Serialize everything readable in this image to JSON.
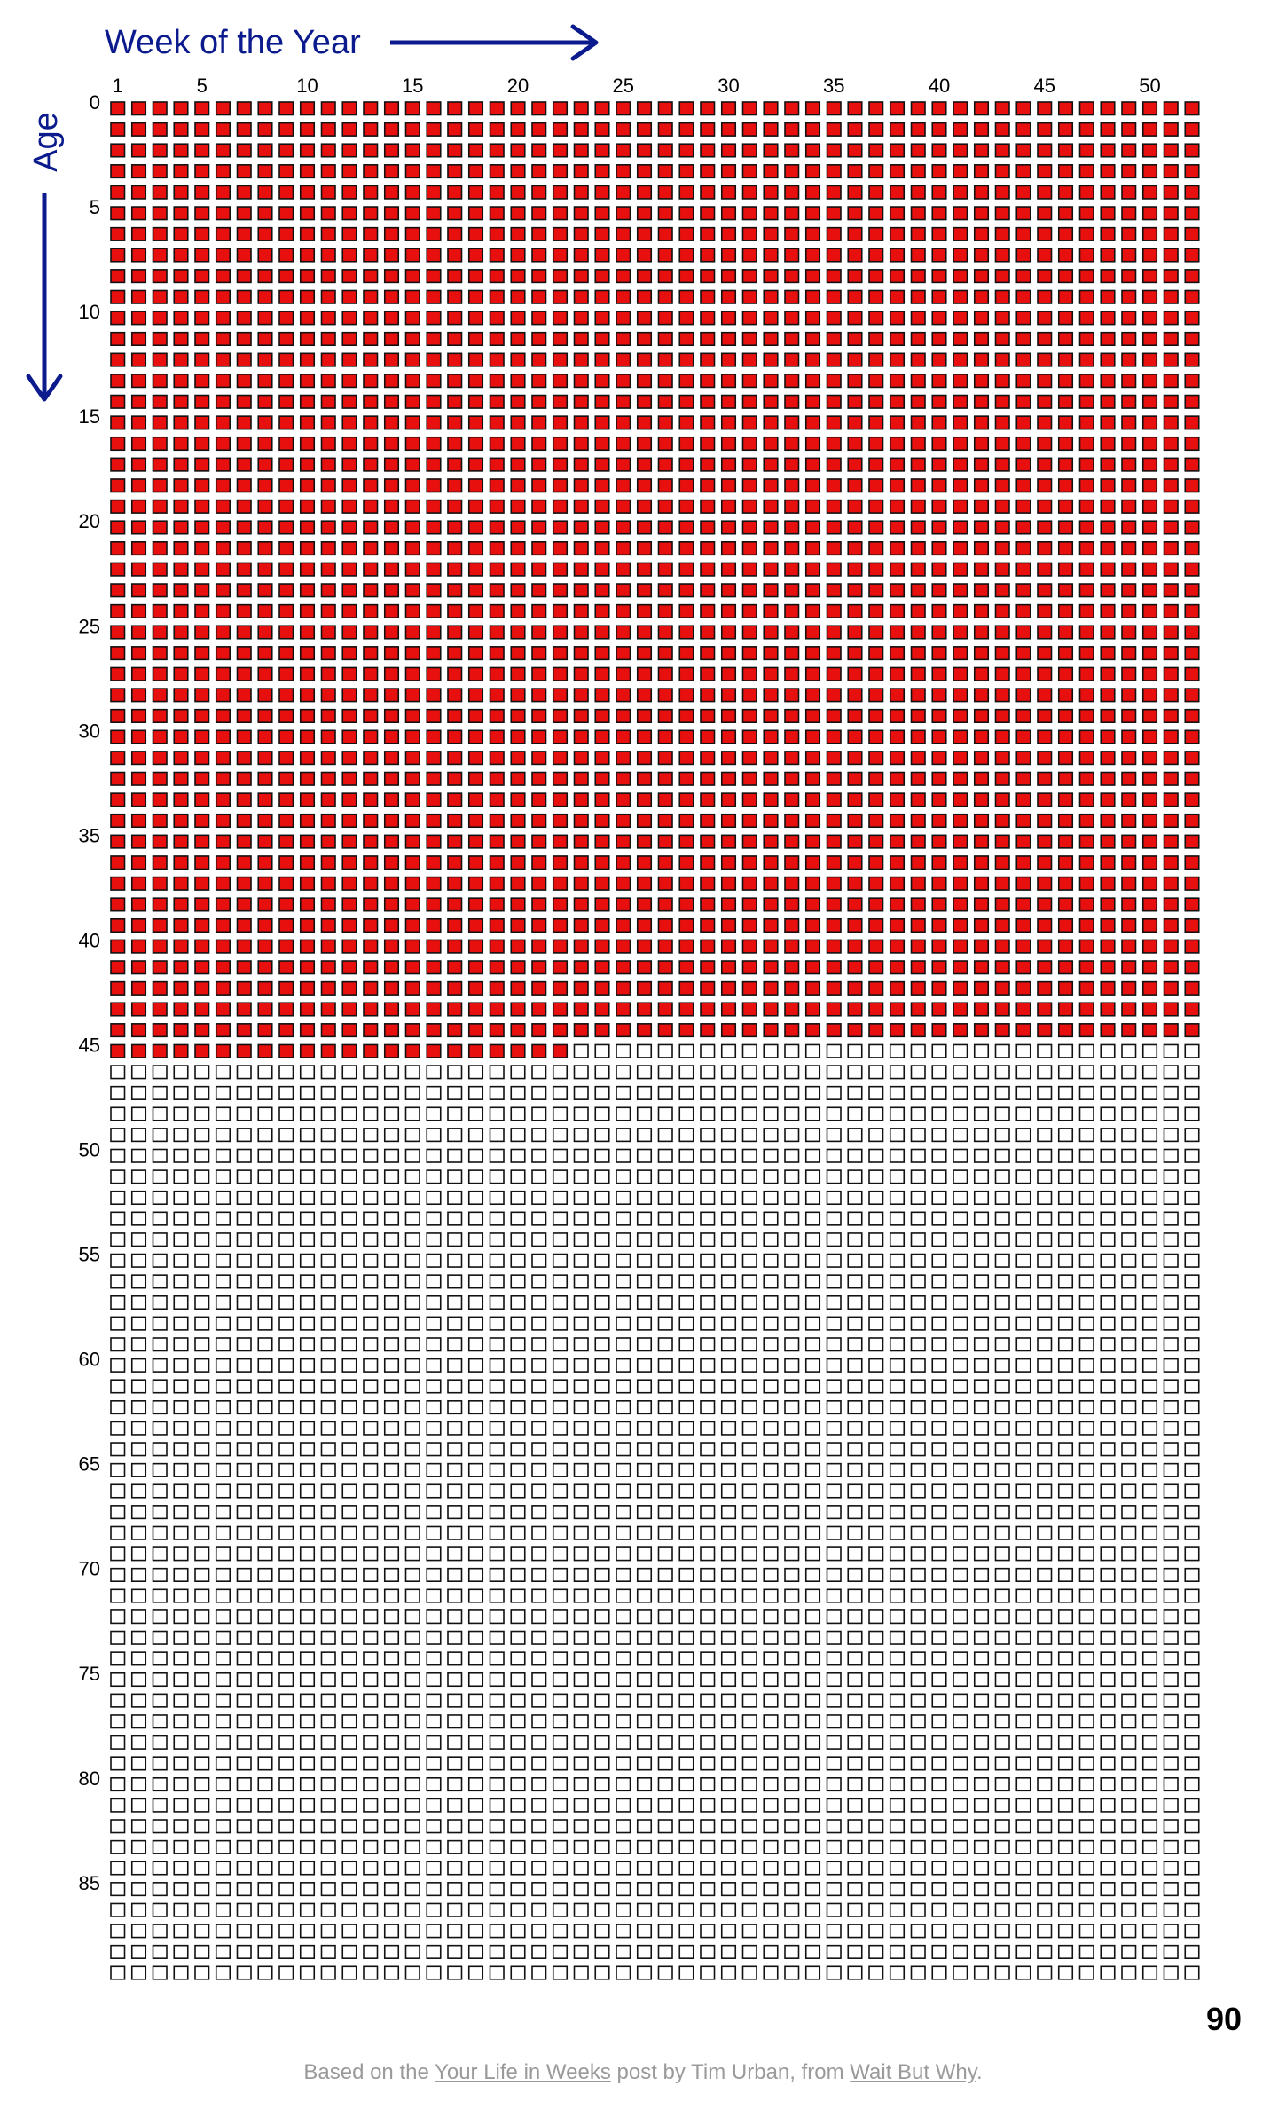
{
  "chart_data": {
    "type": "heatmap",
    "title": "",
    "xlabel": "Week of the Year",
    "ylabel": "Age",
    "x_ticks": [
      "1",
      "5",
      "10",
      "15",
      "20",
      "25",
      "30",
      "35",
      "40",
      "45",
      "50"
    ],
    "y_ticks": [
      "0",
      "5",
      "10",
      "15",
      "20",
      "25",
      "30",
      "35",
      "40",
      "45",
      "50",
      "55",
      "60",
      "65",
      "70",
      "75",
      "80",
      "85"
    ],
    "end_label": "90",
    "weeks_per_year": 52,
    "years": 90,
    "filled_full_years": 45,
    "filled_weeks_in_current_year": 22,
    "grid": false,
    "colors": {
      "filled": "#e8100f",
      "empty": "#ffffff",
      "outline": "#111111",
      "axis_titles": "#0b1a8c",
      "tick_labels": "#000000"
    }
  },
  "footer": {
    "prefix": "Based on the",
    "link1": "Your Life in Weeks",
    "middle": "post by Tim Urban, from",
    "link2": "Wait But Why",
    "suffix": "."
  }
}
